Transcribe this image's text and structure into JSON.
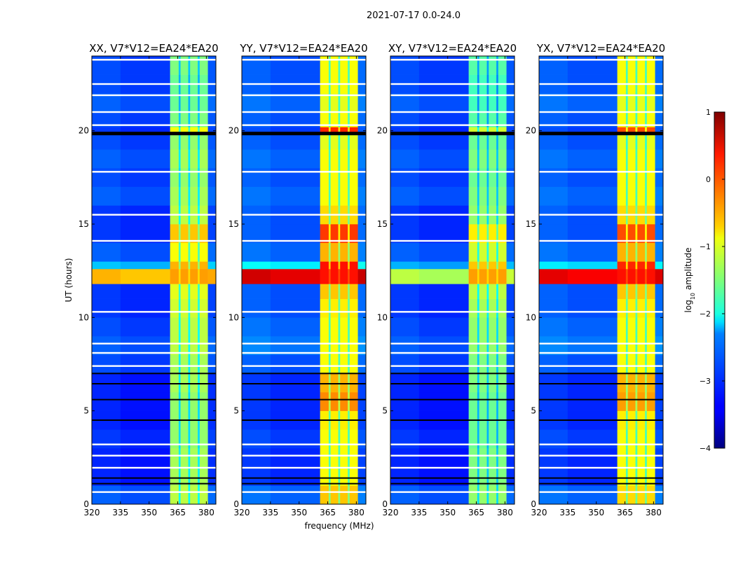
{
  "chart_data": {
    "type": "heatmap",
    "suptitle": "2021-07-17 0.0-24.0",
    "xlabel": "frequency (MHz)",
    "ylabel": "UT (hours)",
    "xlim": [
      320,
      385
    ],
    "ylim": [
      0,
      24
    ],
    "xticks": [
      "320",
      "335",
      "350",
      "365",
      "380"
    ],
    "yticks": [
      "0",
      "5",
      "10",
      "15",
      "20"
    ],
    "freq_edges": [
      320,
      335,
      350,
      361,
      365.5,
      366.5,
      370.5,
      371.5,
      375.5,
      376.5,
      380.8,
      385
    ],
    "time_edges": [
      0,
      1,
      2,
      3,
      4,
      5,
      6,
      7,
      8,
      9,
      10,
      11,
      11.8,
      12.6,
      13,
      14,
      15,
      16,
      17,
      18,
      19,
      19.8,
      20.2,
      21,
      22,
      23,
      24
    ],
    "flagged_hours": [
      0.65,
      1.95,
      2.6,
      3.2,
      7.4,
      8.1,
      8.6,
      10.3,
      14.1,
      15.5,
      17.8,
      20.3,
      21.0,
      21.9,
      22.5,
      23.8
    ],
    "dark_hours": [
      1.1,
      1.4,
      4.5,
      5.6,
      6.45,
      7.0,
      19.85
    ],
    "colorbar": {
      "label_prefix": "log",
      "label_sub": "10",
      "label_suffix": " amplitude",
      "range": [
        -4,
        1
      ],
      "ticks": [
        "1",
        "0",
        "−1",
        "−2",
        "−3",
        "−4"
      ],
      "cmap": "jet"
    },
    "panels": [
      {
        "title": "XX, V7*V12=EA24*EA20",
        "band": [
          -1.2,
          -1.3,
          -1.3,
          -1.4,
          -1.4,
          -1.4,
          -1.3,
          -1.3,
          -1.2,
          -1.2,
          -1.1,
          -1.0,
          -0.4,
          -0.5,
          -0.9,
          -0.6,
          -1.2,
          -1.3,
          -1.4,
          -1.3,
          -1.4,
          -0.9,
          -1.5,
          -1.6,
          -1.6,
          -1.5
        ],
        "background": [
          -3.0,
          -3.3,
          -3.3,
          -3.2,
          -3.3,
          -3.3,
          -3.3,
          -3.1,
          -3.0,
          -3.1,
          -3.2,
          -3.2,
          -0.6,
          -2.5,
          -3.0,
          -3.2,
          -3.2,
          -3.0,
          -3.1,
          -3.0,
          -3.1,
          -3.2,
          -3.1,
          -3.0,
          -3.1,
          -3.1
        ]
      },
      {
        "title": "YY, V7*V12=EA24*EA20",
        "band": [
          -0.6,
          -0.9,
          -0.9,
          -0.9,
          -0.8,
          -0.3,
          -0.5,
          -0.9,
          -0.9,
          -0.9,
          -0.8,
          -0.6,
          0.3,
          0.3,
          -0.5,
          0.1,
          -0.7,
          -0.9,
          -0.9,
          -0.9,
          -1.0,
          0.2,
          -0.9,
          -1.0,
          -0.9,
          -0.9
        ],
        "background": [
          -2.9,
          -3.2,
          -3.2,
          -3.1,
          -3.2,
          -3.2,
          -3.2,
          -3.0,
          -2.8,
          -2.9,
          -3.0,
          -3.0,
          0.5,
          -2.2,
          -2.9,
          -3.0,
          -3.0,
          -2.9,
          -3.0,
          -2.9,
          -3.0,
          -3.1,
          -3.0,
          -2.9,
          -3.0,
          -3.0
        ]
      },
      {
        "title": "XY, V7*V12=EA24*EA20",
        "band": [
          -1.4,
          -1.5,
          -1.5,
          -1.6,
          -1.6,
          -1.6,
          -1.5,
          -1.5,
          -1.4,
          -1.4,
          -1.3,
          -1.2,
          -0.4,
          -0.6,
          -1.1,
          -0.8,
          -1.4,
          -1.5,
          -1.6,
          -1.5,
          -1.6,
          -1.1,
          -1.7,
          -1.8,
          -1.8,
          -1.7
        ],
        "background": [
          -3.0,
          -3.3,
          -3.3,
          -3.2,
          -3.3,
          -3.3,
          -3.3,
          -3.1,
          -3.0,
          -3.1,
          -3.2,
          -3.2,
          -1.3,
          -2.6,
          -3.0,
          -3.2,
          -3.2,
          -3.0,
          -3.1,
          -3.0,
          -3.1,
          -3.2,
          -3.1,
          -3.0,
          -3.1,
          -3.1
        ]
      },
      {
        "title": "YX, V7*V12=EA24*EA20",
        "band": [
          -0.7,
          -0.9,
          -0.9,
          -0.9,
          -0.8,
          -0.4,
          -0.5,
          -0.9,
          -0.9,
          -0.9,
          -0.8,
          -0.6,
          0.3,
          0.2,
          -0.5,
          0.0,
          -0.7,
          -0.9,
          -0.9,
          -0.9,
          -1.0,
          0.0,
          -0.9,
          -1.0,
          -0.9,
          -0.9
        ],
        "background": [
          -2.9,
          -3.2,
          -3.2,
          -3.1,
          -3.2,
          -3.2,
          -3.2,
          -3.0,
          -2.8,
          -2.9,
          -3.0,
          -3.0,
          0.4,
          -2.3,
          -2.9,
          -3.0,
          -3.0,
          -2.9,
          -3.0,
          -2.9,
          -3.0,
          -3.1,
          -3.0,
          -2.9,
          -3.0,
          -3.0
        ]
      }
    ]
  }
}
